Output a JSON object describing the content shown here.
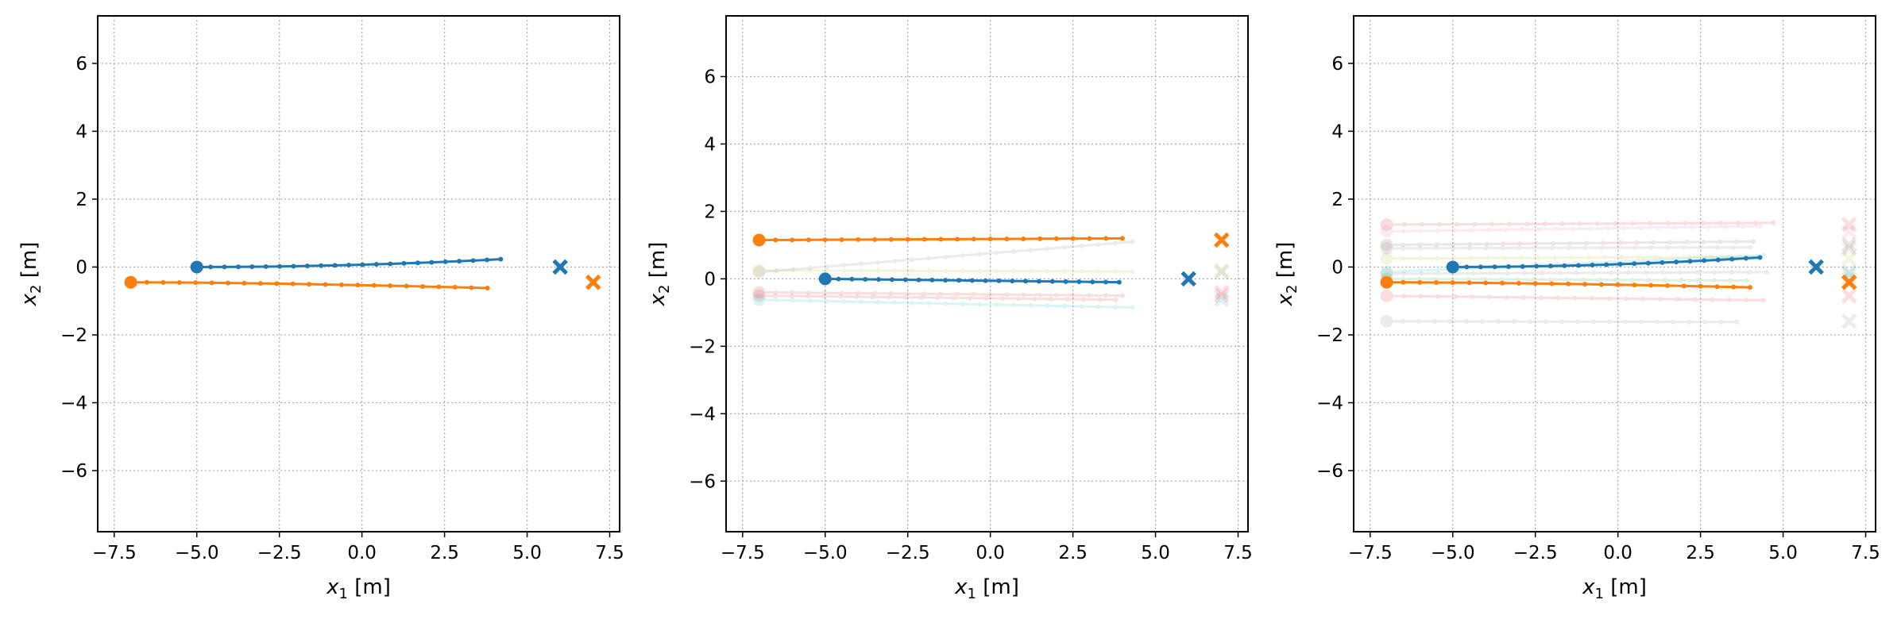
{
  "chart_data": [
    {
      "type": "line",
      "panel": "left",
      "xlabel_var": "x",
      "xlabel_sub": "1",
      "xlabel_unit": " [m]",
      "ylabel_var": "x",
      "ylabel_sub": "2",
      "ylabel_unit": " [m]",
      "xlim": [
        -8.0,
        7.8
      ],
      "ylim": [
        -7.8,
        7.4
      ],
      "xticks": [
        -7.5,
        -5.0,
        -2.5,
        0.0,
        2.5,
        5.0,
        7.5
      ],
      "xtick_labels": [
        "−7.5",
        "−5.0",
        "−2.5",
        "0.0",
        "2.5",
        "5.0",
        "7.5"
      ],
      "yticks": [
        -6,
        -4,
        -2,
        0,
        2,
        4,
        6
      ],
      "ytick_labels": [
        "−6",
        "−4",
        "−2",
        "0",
        "2",
        "4",
        "6"
      ],
      "grid": true,
      "series": [
        {
          "color": "#1f77b4",
          "start": [
            -5.0,
            0.0
          ],
          "goal": [
            6.0,
            0.0
          ],
          "x": [
            -5.0,
            4.2
          ],
          "y": [
            0.0,
            0.23
          ],
          "curve": "rise"
        },
        {
          "color": "#ff7f0e",
          "start": [
            -7.0,
            -0.45
          ],
          "goal": [
            7.0,
            -0.45
          ],
          "x": [
            -7.0,
            3.8
          ],
          "y": [
            -0.45,
            -0.62
          ],
          "curve": "fall"
        }
      ],
      "ghost_trajectories": []
    },
    {
      "type": "line",
      "panel": "middle",
      "xlabel_var": "x",
      "xlabel_sub": "1",
      "xlabel_unit": " [m]",
      "ylabel_var": "x",
      "ylabel_sub": "2",
      "ylabel_unit": " [m]",
      "xlim": [
        -8.0,
        7.8
      ],
      "ylim": [
        -7.5,
        7.8
      ],
      "xticks": [
        -7.5,
        -5.0,
        -2.5,
        0.0,
        2.5,
        5.0,
        7.5
      ],
      "xtick_labels": [
        "−7.5",
        "−5.0",
        "−2.5",
        "0.0",
        "2.5",
        "5.0",
        "7.5"
      ],
      "yticks": [
        -6,
        -4,
        -2,
        0,
        2,
        4,
        6
      ],
      "ytick_labels": [
        "−6",
        "−4",
        "−2",
        "0",
        "2",
        "4",
        "6"
      ],
      "grid": true,
      "series": [
        {
          "color": "#ff7f0e",
          "start": [
            -7.0,
            1.15
          ],
          "goal": [
            7.0,
            1.15
          ],
          "x": [
            -7.0,
            4.0
          ],
          "y": [
            1.15,
            1.2
          ],
          "curve": "linear"
        },
        {
          "color": "#1f77b4",
          "start": [
            -5.0,
            0.0
          ],
          "goal": [
            6.0,
            0.0
          ],
          "x": [
            -5.0,
            3.9
          ],
          "y": [
            0.0,
            -0.1
          ],
          "curve": "linear"
        }
      ],
      "ghost_trajectories": [
        {
          "color": "#bcbd22",
          "x": [
            -7.0,
            4.3
          ],
          "y": [
            0.25,
            0.22
          ],
          "goal_y": 0.25
        },
        {
          "color": "#7f7f7f",
          "x": [
            -7.0,
            4.3
          ],
          "y": [
            0.2,
            1.1
          ],
          "goal_y": 0.2
        },
        {
          "color": "#d62728",
          "x": [
            -7.0,
            3.8
          ],
          "y": [
            -0.5,
            -0.62
          ],
          "goal_y": -0.5
        },
        {
          "color": "#17becf",
          "x": [
            -7.0,
            4.3
          ],
          "y": [
            -0.62,
            -0.85
          ],
          "goal_y": -0.62
        },
        {
          "color": "#d62728",
          "x": [
            -7.0,
            4.0
          ],
          "y": [
            -0.4,
            -0.5
          ],
          "goal_y": -0.4
        }
      ]
    },
    {
      "type": "line",
      "panel": "right",
      "xlabel_var": "x",
      "xlabel_sub": "1",
      "xlabel_unit": " [m]",
      "ylabel_var": "x",
      "ylabel_sub": "2",
      "ylabel_unit": " [m]",
      "xlim": [
        -8.0,
        7.8
      ],
      "ylim": [
        -7.8,
        7.4
      ],
      "xticks": [
        -7.5,
        -5.0,
        -2.5,
        0.0,
        2.5,
        5.0,
        7.5
      ],
      "xtick_labels": [
        "−7.5",
        "−5.0",
        "−2.5",
        "0.0",
        "2.5",
        "5.0",
        "7.5"
      ],
      "yticks": [
        -6,
        -4,
        -2,
        0,
        2,
        4,
        6
      ],
      "ytick_labels": [
        "−6",
        "−4",
        "−2",
        "0",
        "2",
        "4",
        "6"
      ],
      "grid": true,
      "series": [
        {
          "color": "#1f77b4",
          "start": [
            -5.0,
            0.0
          ],
          "goal": [
            6.0,
            0.0
          ],
          "x": [
            -5.0,
            4.3
          ],
          "y": [
            0.0,
            0.28
          ],
          "curve": "rise"
        },
        {
          "color": "#ff7f0e",
          "start": [
            -7.0,
            -0.45
          ],
          "goal": [
            7.0,
            -0.45
          ],
          "x": [
            -7.0,
            4.0
          ],
          "y": [
            -0.45,
            -0.6
          ],
          "curve": "fall"
        }
      ],
      "ghost_trajectories": [
        {
          "color": "#d62728",
          "x": [
            -7.0,
            4.7
          ],
          "y": [
            1.25,
            1.3
          ],
          "goal_y": 1.25
        },
        {
          "color": "#e377c2",
          "x": [
            -7.0,
            4.3
          ],
          "y": [
            1.05,
            1.2
          ],
          "goal_y": 1.05
        },
        {
          "color": "#8c564b",
          "x": [
            -7.0,
            4.1
          ],
          "y": [
            0.65,
            0.75
          ],
          "goal_y": 0.65
        },
        {
          "color": "#7f7f7f",
          "x": [
            -7.0,
            4.0
          ],
          "y": [
            0.55,
            0.58
          ],
          "goal_y": 0.55
        },
        {
          "color": "#bcbd22",
          "x": [
            -7.0,
            4.2
          ],
          "y": [
            0.25,
            0.3
          ],
          "goal_y": 0.25
        },
        {
          "color": "#17becf",
          "x": [
            -7.0,
            4.4
          ],
          "y": [
            -0.15,
            0.35
          ],
          "goal_y": -0.15
        },
        {
          "color": "#7f7f7f",
          "x": [
            -7.0,
            4.5
          ],
          "y": [
            -0.2,
            -0.15
          ],
          "goal_y": -0.2
        },
        {
          "color": "#2ca02c",
          "x": [
            -7.0,
            3.9
          ],
          "y": [
            -0.35,
            -0.4
          ],
          "goal_y": -0.35
        },
        {
          "color": "#d62728",
          "x": [
            -7.0,
            4.4
          ],
          "y": [
            -0.85,
            -0.98
          ],
          "goal_y": -0.85
        },
        {
          "color": "#7f7f7f",
          "x": [
            -7.0,
            3.6
          ],
          "y": [
            -1.6,
            -1.62
          ],
          "goal_y": -1.6
        }
      ]
    }
  ]
}
